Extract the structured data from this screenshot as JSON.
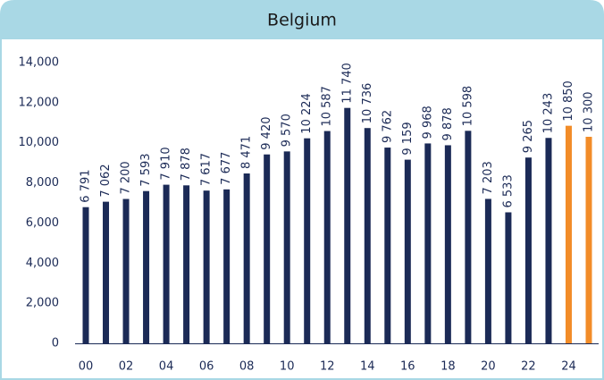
{
  "chart_data": {
    "type": "bar",
    "title": "Belgium",
    "categories": [
      "00",
      null,
      "02",
      null,
      "04",
      null,
      "06",
      null,
      "08",
      null,
      "10",
      null,
      "12",
      null,
      "14",
      null,
      "16",
      null,
      "18",
      null,
      "20",
      null,
      "22",
      null,
      "24",
      null
    ],
    "values": [
      6791,
      7062,
      7200,
      7593,
      7910,
      7878,
      7617,
      7677,
      8471,
      9420,
      9570,
      10224,
      10587,
      11740,
      10736,
      9762,
      9159,
      9968,
      9878,
      10598,
      7203,
      6533,
      9265,
      10243,
      10850,
      10300
    ],
    "value_labels": [
      "6 791",
      "7 062",
      "7 200",
      "7 593",
      "7 910",
      "7 878",
      "7 617",
      "7 677",
      "8 471",
      "9 420",
      "9 570",
      "10 224",
      "10 587",
      "11 740",
      "10 736",
      "9 762",
      "9 159",
      "9 968",
      "9 878",
      "10 598",
      "7 203",
      "6 533",
      "9 265",
      "10 243",
      "10 850",
      "10 300"
    ],
    "colors": [
      "#1b2a56",
      "#1b2a56",
      "#1b2a56",
      "#1b2a56",
      "#1b2a56",
      "#1b2a56",
      "#1b2a56",
      "#1b2a56",
      "#1b2a56",
      "#1b2a56",
      "#1b2a56",
      "#1b2a56",
      "#1b2a56",
      "#1b2a56",
      "#1b2a56",
      "#1b2a56",
      "#1b2a56",
      "#1b2a56",
      "#1b2a56",
      "#1b2a56",
      "#1b2a56",
      "#1b2a56",
      "#1b2a56",
      "#1b2a56",
      "#f28c28",
      "#f28c28"
    ],
    "ylim": [
      0,
      14000
    ],
    "yticks": [
      0,
      {
        "value": 2000,
        "label": "2,000"
      },
      {
        "value": 4000,
        "label": "4,000"
      },
      {
        "value": 6000,
        "label": "6,000"
      },
      {
        "value": 8000,
        "label": "8,000"
      },
      {
        "value": 10000,
        "label": "10,000"
      },
      {
        "value": 12000,
        "label": "12,000"
      },
      {
        "value": 14000,
        "label": "14,000"
      }
    ],
    "grid": false
  }
}
